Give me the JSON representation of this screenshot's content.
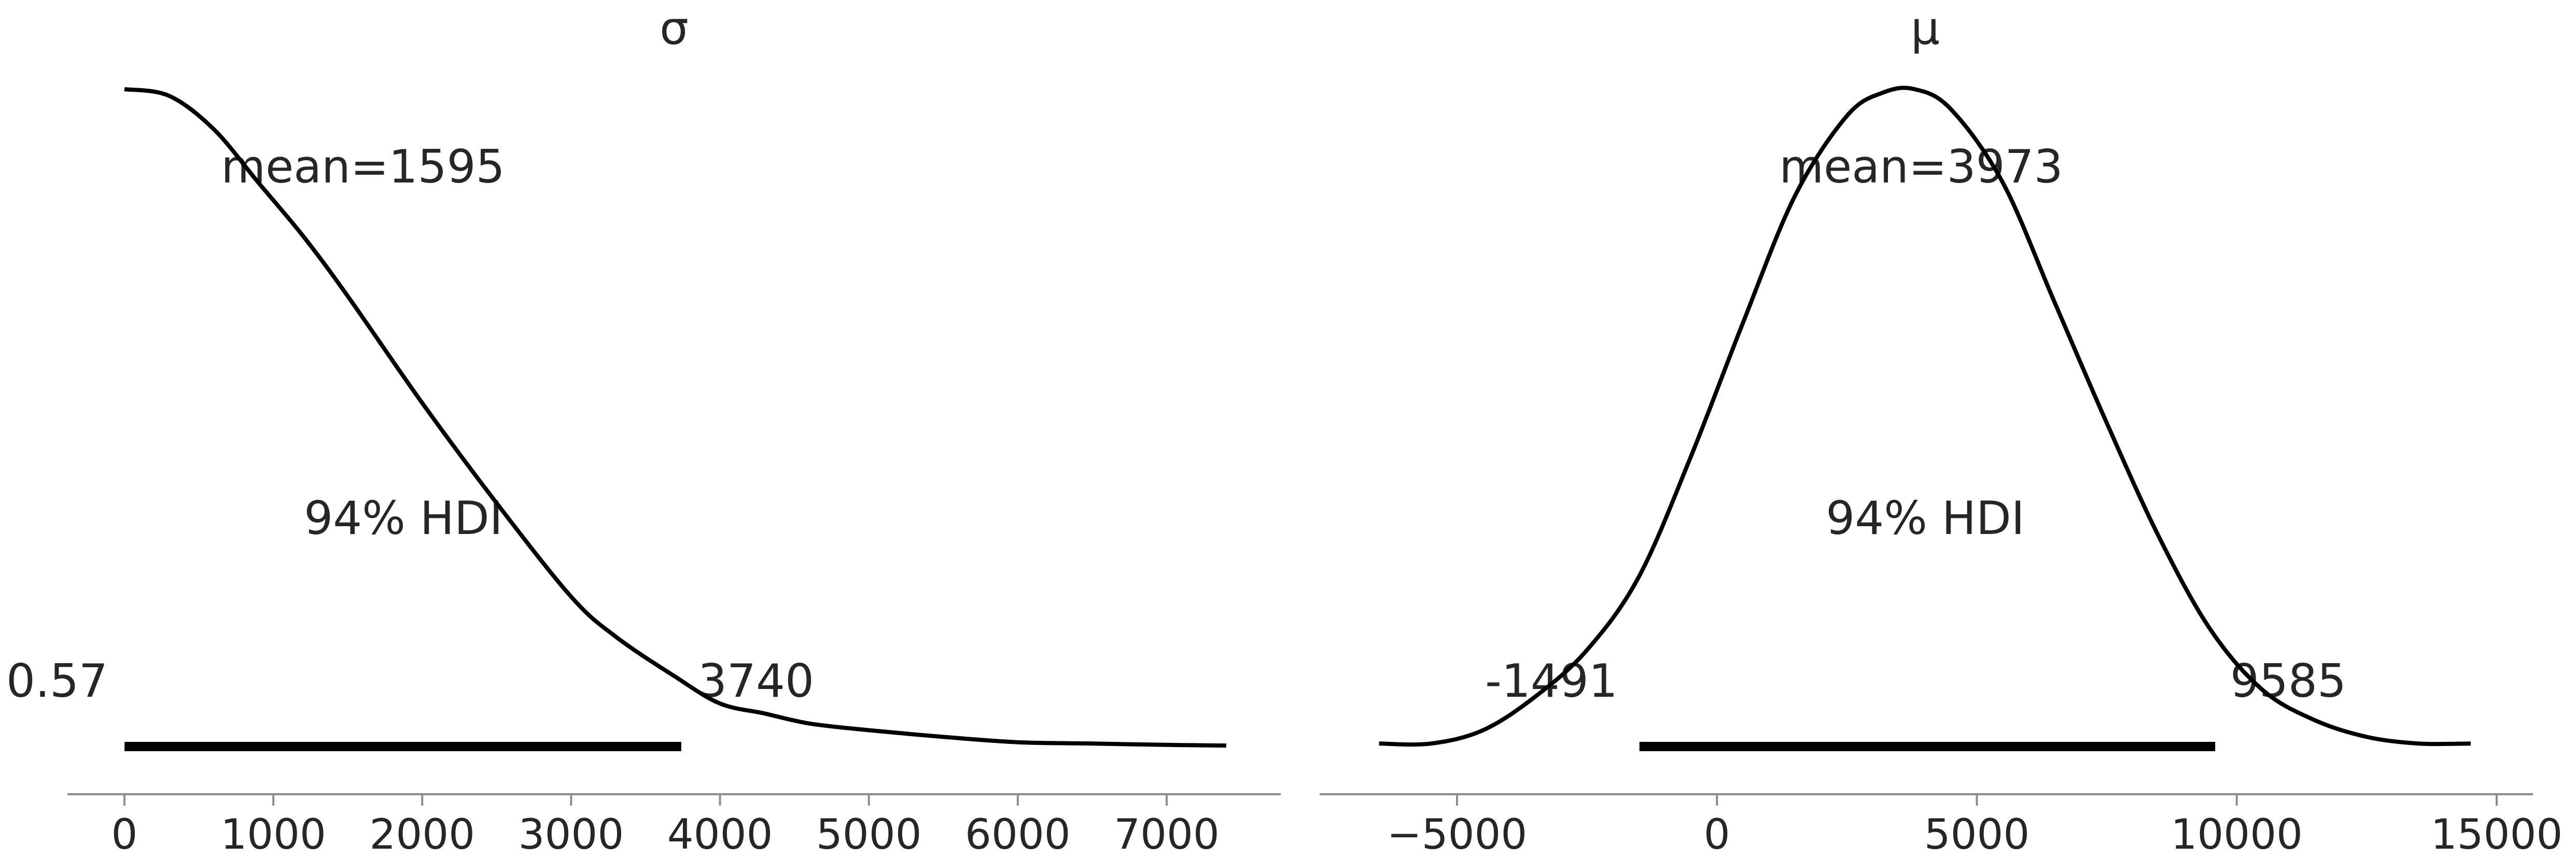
{
  "chart_data": [
    {
      "type": "line",
      "title": "σ",
      "xlabel": "",
      "ylabel": "",
      "xlim": [
        -400,
        7700
      ],
      "ylim": [
        0,
        1
      ],
      "grid": false,
      "xticks": [
        0,
        1000,
        2000,
        3000,
        4000,
        5000,
        6000,
        7000
      ],
      "xtick_labels": [
        "0",
        "1000",
        "2000",
        "3000",
        "4000",
        "5000",
        "6000",
        "7000"
      ],
      "mean_label": "mean=1595",
      "hdi_label": "94% HDI",
      "hdi": [
        0.57,
        3740
      ],
      "hdi_low_label": "0.57",
      "hdi_high_label": "3740",
      "color": "#000000",
      "density": {
        "x": [
          0,
          300,
          600,
          900,
          1200,
          1500,
          2000,
          2500,
          3000,
          3300,
          3700,
          4000,
          4300,
          4600,
          5000,
          5500,
          6000,
          6500,
          7000,
          7400
        ],
        "y": [
          1.0,
          0.99,
          0.94,
          0.86,
          0.78,
          0.69,
          0.53,
          0.38,
          0.24,
          0.18,
          0.12,
          0.08,
          0.065,
          0.05,
          0.04,
          0.03,
          0.022,
          0.02,
          0.018,
          0.017
        ]
      }
    },
    {
      "type": "line",
      "title": "μ",
      "xlabel": "",
      "ylabel": "",
      "xlim": [
        -7200,
        15800
      ],
      "ylim": [
        0,
        1
      ],
      "grid": false,
      "xticks": [
        -5000,
        0,
        5000,
        10000,
        15000
      ],
      "xtick_labels": [
        "−5000",
        "0",
        "5000",
        "10000",
        "15000"
      ],
      "mean_label": "mean=3973",
      "hdi_label": "94% HDI",
      "hdi": [
        -1491,
        9585
      ],
      "hdi_low_label": "-1491",
      "hdi_high_label": "9585",
      "color": "#000000",
      "density": {
        "x": [
          -6500,
          -5500,
          -4500,
          -3500,
          -2500,
          -1500,
          -500,
          500,
          1500,
          2500,
          3200,
          3800,
          4500,
          5500,
          6500,
          7500,
          8500,
          9500,
          10500,
          11500,
          12500,
          13500,
          14500
        ],
        "y": [
          0.02,
          0.02,
          0.04,
          0.09,
          0.16,
          0.27,
          0.45,
          0.65,
          0.84,
          0.96,
          0.995,
          1.0,
          0.97,
          0.86,
          0.68,
          0.5,
          0.33,
          0.19,
          0.1,
          0.055,
          0.03,
          0.02,
          0.02
        ]
      }
    }
  ]
}
